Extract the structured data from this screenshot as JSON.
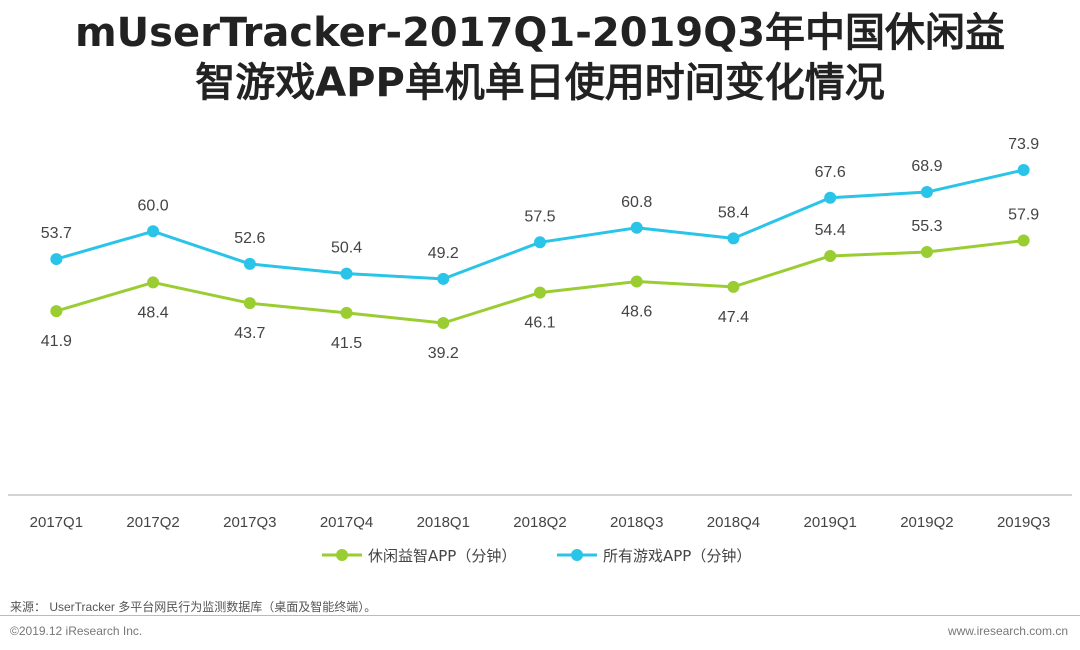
{
  "title_line1": "mUserTracker-2017Q1-2019Q3年中国休闲益",
  "title_line2": "智游戏APP单机单日使用时间变化情况",
  "chart_data": {
    "type": "line",
    "categories": [
      "2017Q1",
      "2017Q2",
      "2017Q3",
      "2017Q4",
      "2018Q1",
      "2018Q2",
      "2018Q3",
      "2018Q4",
      "2019Q1",
      "2019Q2",
      "2019Q3"
    ],
    "series": [
      {
        "name": "休闲益智APP（分钟）",
        "color": "#9ACD32",
        "values": [
          41.9,
          48.4,
          43.7,
          41.5,
          39.2,
          46.1,
          48.6,
          47.4,
          54.4,
          55.3,
          57.9
        ],
        "labels": [
          "41.9",
          "48.4",
          "43.7",
          "41.5",
          "39.2",
          "46.1",
          "48.6",
          "47.4",
          "54.4",
          "55.3",
          "57.9"
        ],
        "label_position": [
          "below",
          "below",
          "below",
          "below",
          "below",
          "below",
          "below",
          "below",
          "above",
          "above",
          "above"
        ]
      },
      {
        "name": "所有游戏APP（分钟）",
        "color": "#29C4E8",
        "values": [
          53.7,
          60.0,
          52.6,
          50.4,
          49.2,
          57.5,
          60.8,
          58.4,
          67.6,
          68.9,
          73.9
        ],
        "labels": [
          "53.7",
          "60.0",
          "52.6",
          "50.4",
          "49.2",
          "57.5",
          "60.8",
          "58.4",
          "67.6",
          "68.9",
          "73.9"
        ],
        "label_position": [
          "above",
          "above",
          "above",
          "above",
          "above",
          "above",
          "above",
          "above",
          "above",
          "above",
          "above"
        ]
      }
    ],
    "ylim": [
      0,
      80
    ],
    "grid": false,
    "legend": "bottom",
    "xlabel": "",
    "ylabel": ""
  },
  "source": "来源： UserTracker 多平台网民行为监测数据库（桌面及智能终端）。",
  "copyright": "©2019.12 iResearch Inc.",
  "website": "www.iresearch.com.cn"
}
